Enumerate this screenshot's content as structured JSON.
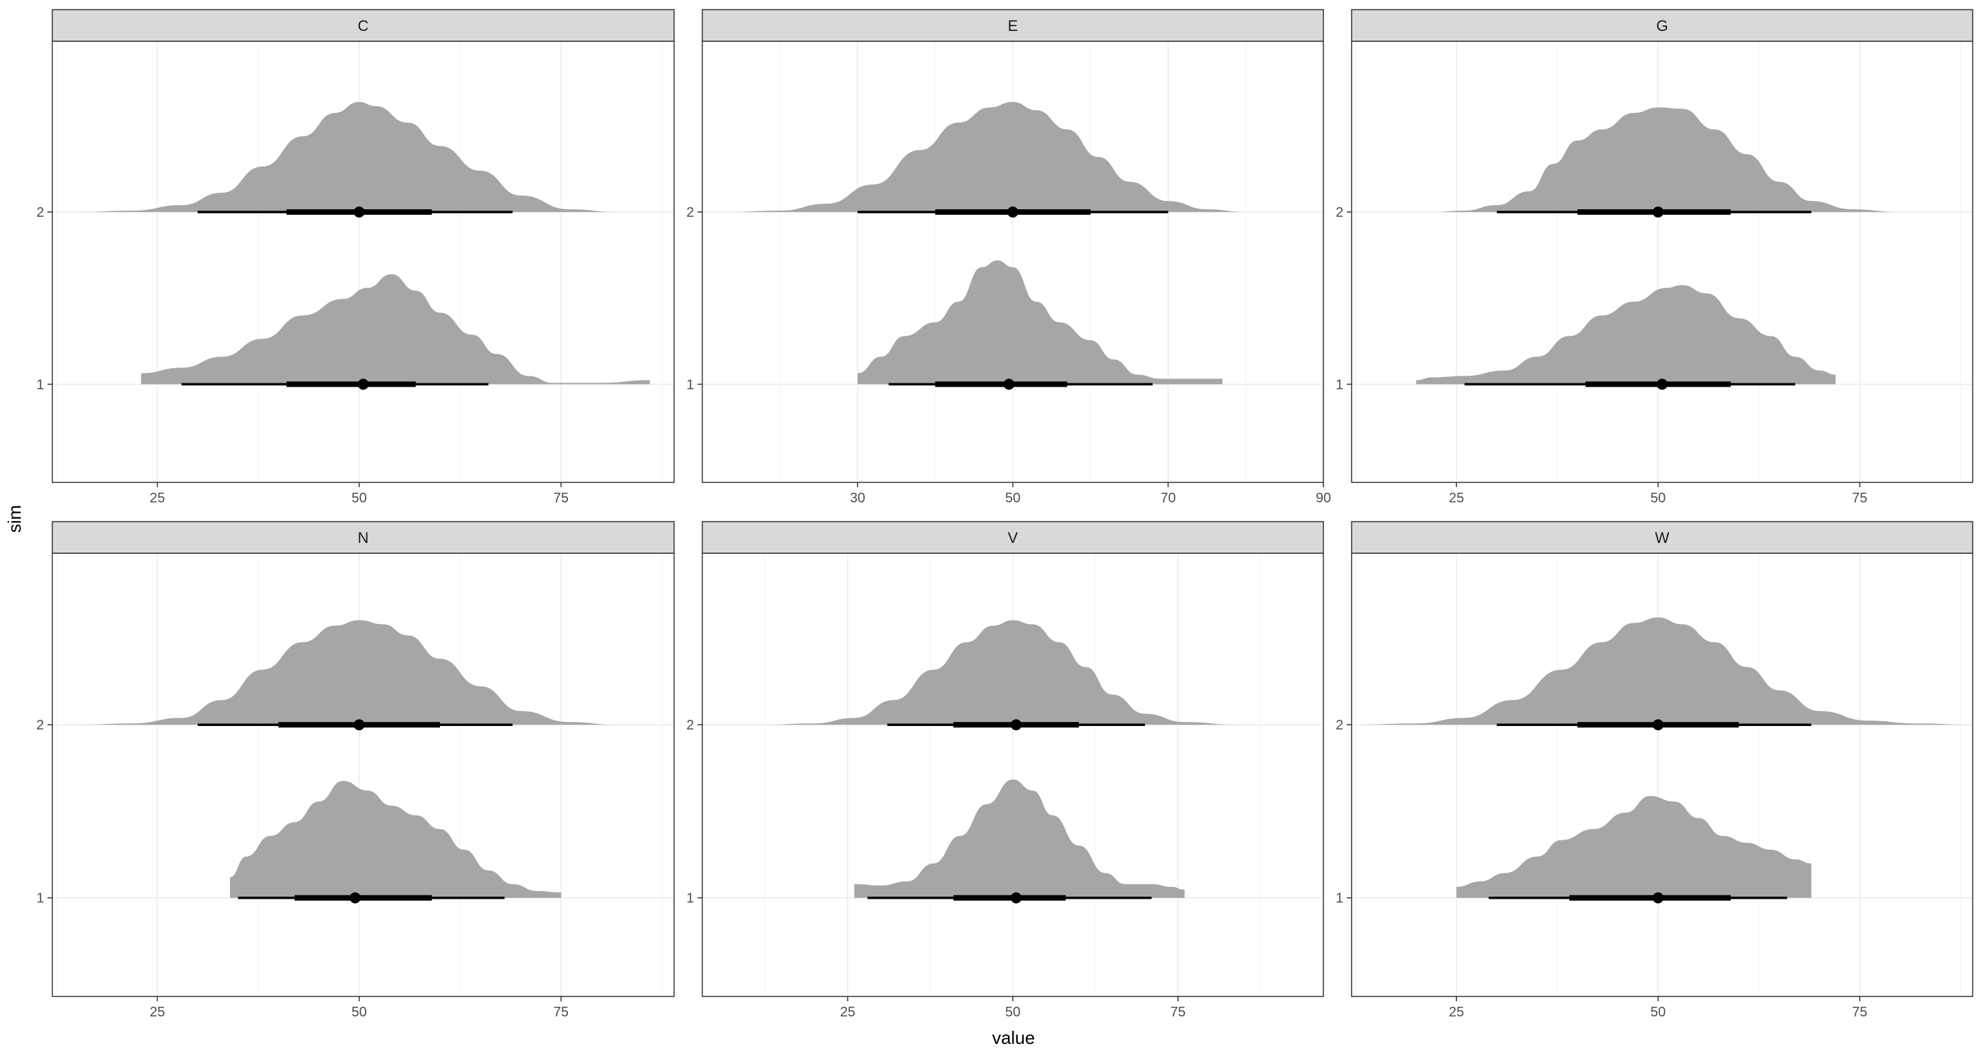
{
  "chart_data": {
    "type": "halfeye",
    "xlabel": "value",
    "ylabel": "sim",
    "y_categories": [
      "1",
      "2"
    ],
    "colors": {
      "density_fill": "#a6a6a6",
      "interval": "#000000",
      "strip_fill": "#d9d9d9",
      "panel_border": "#333333",
      "grid_major": "#ebebeb",
      "grid_minor": "#f3f3f3",
      "background": "#ffffff"
    },
    "panels": [
      {
        "facet": "C",
        "xlim": [
          12,
          89
        ],
        "xticks": [
          25,
          50,
          75
        ],
        "series": [
          {
            "sim": "1",
            "support": [
              23,
              86
            ],
            "tail_right": true,
            "density": [
              [
                23,
                0.08
              ],
              [
                28,
                0.12
              ],
              [
                33,
                0.2
              ],
              [
                38,
                0.33
              ],
              [
                43,
                0.5
              ],
              [
                48,
                0.62
              ],
              [
                51,
                0.7
              ],
              [
                54,
                0.8
              ],
              [
                57,
                0.68
              ],
              [
                60,
                0.52
              ],
              [
                64,
                0.36
              ],
              [
                67,
                0.22
              ],
              [
                71,
                0.06
              ],
              [
                74,
                0.01
              ],
              [
                80,
                0.01
              ],
              [
                86,
                0.03
              ]
            ],
            "median": 50.5,
            "inner": [
              41,
              57
            ],
            "outer": [
              28,
              66
            ]
          },
          {
            "sim": "2",
            "support": [
              15,
              87
            ],
            "density": [
              [
                15,
                0
              ],
              [
                22,
                0.01
              ],
              [
                28,
                0.05
              ],
              [
                33,
                0.14
              ],
              [
                38,
                0.33
              ],
              [
                43,
                0.55
              ],
              [
                47,
                0.72
              ],
              [
                50,
                0.8
              ],
              [
                52,
                0.77
              ],
              [
                56,
                0.65
              ],
              [
                60,
                0.48
              ],
              [
                65,
                0.3
              ],
              [
                70,
                0.12
              ],
              [
                76,
                0.02
              ],
              [
                82,
                0
              ],
              [
                87,
                0
              ]
            ],
            "median": 50,
            "inner": [
              41,
              59
            ],
            "outer": [
              30,
              69
            ]
          }
        ]
      },
      {
        "facet": "E",
        "xlim": [
          10,
          90
        ],
        "xticks": [
          30,
          50,
          70,
          90
        ],
        "series": [
          {
            "sim": "1",
            "support": [
              30,
              77
            ],
            "tail_right": true,
            "density": [
              [
                30,
                0.08
              ],
              [
                33,
                0.2
              ],
              [
                36,
                0.35
              ],
              [
                40,
                0.45
              ],
              [
                43,
                0.6
              ],
              [
                46,
                0.85
              ],
              [
                48,
                0.9
              ],
              [
                50,
                0.85
              ],
              [
                53,
                0.6
              ],
              [
                56,
                0.45
              ],
              [
                60,
                0.32
              ],
              [
                63,
                0.18
              ],
              [
                66,
                0.07
              ],
              [
                69,
                0.04
              ],
              [
                73,
                0.04
              ],
              [
                77,
                0.04
              ]
            ],
            "median": 49.5,
            "inner": [
              40,
              57
            ],
            "outer": [
              34,
              68
            ]
          },
          {
            "sim": "2",
            "support": [
              13,
              87
            ],
            "density": [
              [
                13,
                0
              ],
              [
                20,
                0.01
              ],
              [
                26,
                0.06
              ],
              [
                32,
                0.2
              ],
              [
                38,
                0.45
              ],
              [
                43,
                0.65
              ],
              [
                47,
                0.76
              ],
              [
                50,
                0.8
              ],
              [
                53,
                0.74
              ],
              [
                57,
                0.6
              ],
              [
                61,
                0.4
              ],
              [
                65,
                0.22
              ],
              [
                70,
                0.08
              ],
              [
                75,
                0.02
              ],
              [
                80,
                0
              ],
              [
                87,
                0
              ]
            ],
            "median": 50,
            "inner": [
              40,
              60
            ],
            "outer": [
              30,
              70
            ]
          }
        ]
      },
      {
        "facet": "G",
        "xlim": [
          12,
          89
        ],
        "xticks": [
          25,
          50,
          75
        ],
        "series": [
          {
            "sim": "1",
            "support": [
              20,
              72
            ],
            "tail_right": true,
            "density": [
              [
                20,
                0.03
              ],
              [
                22,
                0.05
              ],
              [
                26,
                0.06
              ],
              [
                31,
                0.1
              ],
              [
                35,
                0.2
              ],
              [
                39,
                0.35
              ],
              [
                43,
                0.5
              ],
              [
                47,
                0.6
              ],
              [
                51,
                0.7
              ],
              [
                53,
                0.72
              ],
              [
                56,
                0.66
              ],
              [
                60,
                0.48
              ],
              [
                64,
                0.35
              ],
              [
                67,
                0.2
              ],
              [
                70,
                0.1
              ],
              [
                72,
                0.07
              ]
            ],
            "median": 50.5,
            "inner": [
              41,
              59
            ],
            "outer": [
              26,
              67
            ]
          },
          {
            "sim": "2",
            "support": [
              22,
              87
            ],
            "density": [
              [
                22,
                0
              ],
              [
                26,
                0.01
              ],
              [
                30,
                0.05
              ],
              [
                34,
                0.15
              ],
              [
                37,
                0.35
              ],
              [
                40,
                0.52
              ],
              [
                43,
                0.6
              ],
              [
                47,
                0.72
              ],
              [
                50,
                0.76
              ],
              [
                53,
                0.75
              ],
              [
                57,
                0.6
              ],
              [
                61,
                0.42
              ],
              [
                65,
                0.22
              ],
              [
                69,
                0.08
              ],
              [
                74,
                0.02
              ],
              [
                80,
                0
              ],
              [
                87,
                0
              ]
            ],
            "median": 50,
            "inner": [
              40,
              59
            ],
            "outer": [
              30,
              69
            ]
          }
        ]
      },
      {
        "facet": "N",
        "xlim": [
          12,
          89
        ],
        "xticks": [
          25,
          50,
          75
        ],
        "series": [
          {
            "sim": "1",
            "support": [
              34,
              75
            ],
            "tail_right": true,
            "density": [
              [
                34,
                0.15
              ],
              [
                36,
                0.3
              ],
              [
                39,
                0.45
              ],
              [
                42,
                0.55
              ],
              [
                45,
                0.7
              ],
              [
                48,
                0.85
              ],
              [
                51,
                0.78
              ],
              [
                54,
                0.67
              ],
              [
                57,
                0.6
              ],
              [
                60,
                0.5
              ],
              [
                63,
                0.35
              ],
              [
                66,
                0.2
              ],
              [
                69,
                0.1
              ],
              [
                72,
                0.05
              ],
              [
                75,
                0.04
              ]
            ],
            "median": 49.5,
            "inner": [
              42,
              59
            ],
            "outer": [
              35,
              68
            ]
          },
          {
            "sim": "2",
            "support": [
              15,
              86
            ],
            "density": [
              [
                15,
                0
              ],
              [
                22,
                0.01
              ],
              [
                28,
                0.05
              ],
              [
                33,
                0.18
              ],
              [
                38,
                0.4
              ],
              [
                43,
                0.6
              ],
              [
                47,
                0.72
              ],
              [
                50,
                0.76
              ],
              [
                53,
                0.73
              ],
              [
                56,
                0.65
              ],
              [
                60,
                0.48
              ],
              [
                65,
                0.28
              ],
              [
                70,
                0.1
              ],
              [
                76,
                0.02
              ],
              [
                82,
                0
              ],
              [
                86,
                0
              ]
            ],
            "median": 50,
            "inner": [
              40,
              60
            ],
            "outer": [
              30,
              69
            ]
          }
        ]
      },
      {
        "facet": "V",
        "xlim": [
          3,
          97
        ],
        "xticks": [
          25,
          50,
          75
        ],
        "series": [
          {
            "sim": "1",
            "support": [
              26,
              76
            ],
            "tail_right": true,
            "density": [
              [
                26,
                0.1
              ],
              [
                30,
                0.09
              ],
              [
                34,
                0.12
              ],
              [
                38,
                0.25
              ],
              [
                42,
                0.45
              ],
              [
                46,
                0.68
              ],
              [
                50,
                0.86
              ],
              [
                53,
                0.78
              ],
              [
                56,
                0.6
              ],
              [
                60,
                0.38
              ],
              [
                64,
                0.18
              ],
              [
                67,
                0.1
              ],
              [
                71,
                0.1
              ],
              [
                74,
                0.08
              ],
              [
                76,
                0.06
              ]
            ],
            "median": 50.5,
            "inner": [
              41,
              58
            ],
            "outer": [
              28,
              71
            ]
          },
          {
            "sim": "2",
            "support": [
              12,
              92
            ],
            "density": [
              [
                12,
                0
              ],
              [
                20,
                0.01
              ],
              [
                26,
                0.05
              ],
              [
                32,
                0.18
              ],
              [
                38,
                0.4
              ],
              [
                43,
                0.6
              ],
              [
                47,
                0.72
              ],
              [
                50,
                0.76
              ],
              [
                53,
                0.73
              ],
              [
                57,
                0.6
              ],
              [
                61,
                0.42
              ],
              [
                65,
                0.22
              ],
              [
                70,
                0.08
              ],
              [
                76,
                0.02
              ],
              [
                84,
                0
              ],
              [
                92,
                0
              ]
            ],
            "median": 50.5,
            "inner": [
              41,
              60
            ],
            "outer": [
              31,
              70
            ]
          }
        ]
      },
      {
        "facet": "W",
        "xlim": [
          12,
          89
        ],
        "xticks": [
          25,
          50,
          75
        ],
        "series": [
          {
            "sim": "1",
            "support": [
              25,
              69
            ],
            "tail_right": true,
            "density": [
              [
                25,
                0.08
              ],
              [
                28,
                0.12
              ],
              [
                31,
                0.18
              ],
              [
                35,
                0.3
              ],
              [
                38,
                0.42
              ],
              [
                42,
                0.5
              ],
              [
                46,
                0.62
              ],
              [
                49,
                0.74
              ],
              [
                52,
                0.7
              ],
              [
                55,
                0.58
              ],
              [
                58,
                0.45
              ],
              [
                61,
                0.4
              ],
              [
                64,
                0.35
              ],
              [
                67,
                0.28
              ],
              [
                69,
                0.25
              ]
            ],
            "median": 50,
            "inner": [
              39,
              59
            ],
            "outer": [
              29,
              66
            ]
          },
          {
            "sim": "2",
            "support": [
              12,
              89
            ],
            "density": [
              [
                12,
                0
              ],
              [
                20,
                0.01
              ],
              [
                26,
                0.05
              ],
              [
                32,
                0.18
              ],
              [
                38,
                0.4
              ],
              [
                43,
                0.6
              ],
              [
                47,
                0.74
              ],
              [
                50,
                0.78
              ],
              [
                53,
                0.73
              ],
              [
                57,
                0.6
              ],
              [
                61,
                0.42
              ],
              [
                65,
                0.25
              ],
              [
                70,
                0.1
              ],
              [
                76,
                0.03
              ],
              [
                82,
                0.01
              ],
              [
                89,
                0
              ]
            ],
            "median": 50,
            "inner": [
              40,
              60
            ],
            "outer": [
              30,
              69
            ]
          }
        ]
      }
    ]
  }
}
